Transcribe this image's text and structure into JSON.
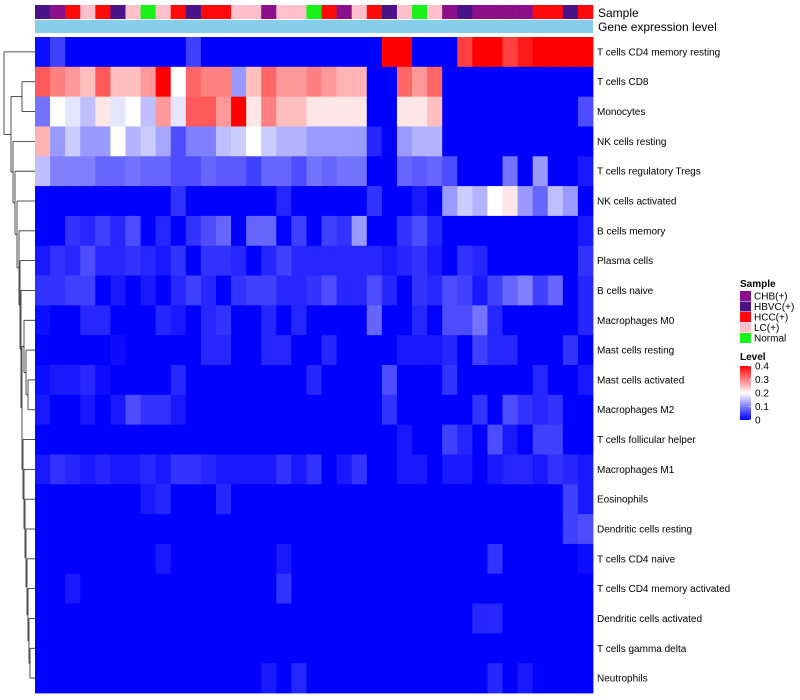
{
  "chart_data": {
    "type": "heatmap",
    "title": "",
    "annotation_rows": [
      "Sample",
      "Gene expression level"
    ],
    "sample_groups": [
      "HBVC(+)",
      "CHB(+)",
      "HCC(+)",
      "LC(+)",
      "HCC(+)",
      "HBVC(+)",
      "LC(+)",
      "Normal",
      "LC(+)",
      "HCC(+)",
      "HBVC(+)",
      "HCC(+)",
      "HCC(+)",
      "LC(+)",
      "LC(+)",
      "CHB(+)",
      "LC(+)",
      "LC(+)",
      "Normal",
      "HCC(+)",
      "CHB(+)",
      "LC(+)",
      "HCC(+)",
      "HBVC(+)",
      "LC(+)",
      "Normal",
      "LC(+)",
      "CHB(+)",
      "HBVC(+)",
      "CHB(+)",
      "CHB(+)",
      "CHB(+)",
      "CHB(+)",
      "HCC(+)",
      "HCC(+)",
      "HBVC(+)",
      "HCC(+)"
    ],
    "rows": [
      "T cells CD4 memory resting",
      "T cells CD8",
      "Monocytes",
      "NK cells resting",
      "T cells regulatory  Tregs",
      "NK cells activated",
      "B cells memory",
      "Plasma cells",
      "B cells naive",
      "Macrophages M0",
      "Mast cells resting",
      "Mast cells activated",
      "Macrophages M2",
      "T cells follicular helper",
      "Macrophages M1",
      "Eosinophils",
      "Dendritic cells resting",
      "T cells CD4 naive",
      "T cells CD4 memory activated",
      "Dendritic cells activated",
      "T cells gamma delta",
      "Neutrophils"
    ],
    "values": [
      [
        0.01,
        0.05,
        0,
        0,
        0,
        0,
        0,
        0,
        0,
        0,
        0.05,
        0,
        0,
        0,
        0,
        0,
        0,
        0,
        0,
        0,
        0,
        0,
        0,
        0.4,
        0.4,
        0,
        0,
        0,
        0.35,
        0.4,
        0.4,
        0.35,
        0.38,
        0.4,
        0.4,
        0.4,
        0.4
      ],
      [
        0.33,
        0.3,
        0.28,
        0.25,
        0.33,
        0.25,
        0.25,
        0.28,
        0.4,
        0.2,
        0.32,
        0.3,
        0.3,
        0.12,
        0.25,
        0.32,
        0.28,
        0.28,
        0.3,
        0.28,
        0.26,
        0.26,
        0,
        0,
        0.32,
        0.28,
        0.32,
        0,
        0,
        0,
        0,
        0,
        0,
        0,
        0,
        0,
        0
      ],
      [
        0.09,
        0.2,
        0.18,
        0.15,
        0.22,
        0.18,
        0.2,
        0.15,
        0.28,
        0.18,
        0.33,
        0.33,
        0.28,
        0.42,
        0.22,
        0.3,
        0.25,
        0.25,
        0.22,
        0.22,
        0.22,
        0.22,
        0,
        0,
        0.22,
        0.22,
        0.25,
        0,
        0,
        0,
        0,
        0,
        0,
        0,
        0,
        0,
        0.06
      ],
      [
        0.26,
        0.12,
        0.16,
        0.12,
        0.12,
        0.2,
        0.14,
        0.16,
        0.13,
        0.06,
        0.1,
        0.1,
        0.15,
        0.16,
        0.2,
        0.16,
        0.14,
        0.14,
        0.12,
        0.12,
        0.12,
        0.12,
        0.03,
        0,
        0.12,
        0.14,
        0.14,
        0,
        0,
        0,
        0,
        0,
        0,
        0,
        0,
        0,
        0
      ],
      [
        0.15,
        0.1,
        0.1,
        0.1,
        0.08,
        0.08,
        0.09,
        0.08,
        0.08,
        0.06,
        0.06,
        0.08,
        0.07,
        0.07,
        0.05,
        0.08,
        0.08,
        0.06,
        0.09,
        0.08,
        0.09,
        0.09,
        0,
        0,
        0.08,
        0.07,
        0.08,
        0.06,
        0,
        0,
        0,
        0.09,
        0,
        0.12,
        0,
        0,
        0.02
      ],
      [
        0,
        0,
        0,
        0,
        0,
        0,
        0,
        0,
        0,
        0.04,
        0,
        0,
        0,
        0,
        0,
        0,
        0.03,
        0,
        0,
        0,
        0,
        0,
        0.04,
        0,
        0,
        0.02,
        0,
        0.12,
        0.16,
        0.14,
        0.2,
        0.22,
        0.12,
        0.08,
        0.15,
        0.12,
        0
      ],
      [
        0,
        0,
        0.04,
        0.03,
        0.05,
        0.03,
        0.06,
        0,
        0.03,
        0,
        0.04,
        0.06,
        0.08,
        0,
        0.08,
        0.08,
        0,
        0.05,
        0,
        0.05,
        0.04,
        0.12,
        0,
        0,
        0.04,
        0.06,
        0.03,
        0,
        0,
        0,
        0,
        0,
        0,
        0,
        0,
        0,
        0.02
      ],
      [
        0.02,
        0.04,
        0.03,
        0.06,
        0.03,
        0.03,
        0.04,
        0.03,
        0.02,
        0.04,
        0,
        0.04,
        0.04,
        0.03,
        0,
        0.03,
        0.05,
        0.03,
        0.03,
        0.03,
        0.03,
        0.03,
        0.03,
        0.02,
        0.03,
        0.04,
        0.02,
        0,
        0.04,
        0.03,
        0,
        0,
        0,
        0,
        0,
        0,
        0.04
      ],
      [
        0.04,
        0.04,
        0.05,
        0.05,
        0,
        0.02,
        0,
        0.02,
        0,
        0.03,
        0.05,
        0.03,
        0,
        0.04,
        0.05,
        0.05,
        0.03,
        0.03,
        0.04,
        0.06,
        0.03,
        0.03,
        0.06,
        0.03,
        0,
        0.04,
        0.03,
        0.06,
        0.05,
        0.02,
        0.05,
        0.08,
        0.1,
        0.05,
        0.08,
        0,
        0.03
      ],
      [
        0.01,
        0,
        0,
        0.03,
        0.03,
        0,
        0,
        0,
        0.03,
        0.02,
        0,
        0.03,
        0.04,
        0,
        0,
        0.03,
        0,
        0.03,
        0,
        0,
        0,
        0,
        0.08,
        0,
        0,
        0.03,
        0,
        0.06,
        0.06,
        0.09,
        0.03,
        0,
        0,
        0,
        0,
        0,
        0.03
      ],
      [
        0,
        0,
        0,
        0,
        0,
        0.01,
        0,
        0,
        0,
        0,
        0,
        0.03,
        0.03,
        0,
        0,
        0.03,
        0.03,
        0,
        0,
        0.03,
        0,
        0,
        0,
        0,
        0.02,
        0.02,
        0.02,
        0.03,
        0,
        0.05,
        0.03,
        0.03,
        0,
        0,
        0,
        0.04,
        0
      ],
      [
        0.01,
        0.02,
        0.02,
        0.03,
        0.01,
        0,
        0,
        0,
        0,
        0.03,
        0,
        0,
        0,
        0,
        0,
        0,
        0,
        0,
        0.03,
        0,
        0,
        0,
        0,
        0.06,
        0,
        0,
        0,
        0.04,
        0,
        0,
        0,
        0,
        0,
        0.03,
        0,
        0,
        0.02
      ],
      [
        0.02,
        0,
        0,
        0.02,
        0,
        0.02,
        0.06,
        0.04,
        0.04,
        0.02,
        0,
        0,
        0,
        0,
        0,
        0,
        0,
        0,
        0,
        0,
        0,
        0,
        0,
        0.04,
        0,
        0,
        0,
        0,
        0,
        0.04,
        0,
        0.06,
        0.04,
        0.03,
        0.04,
        0,
        0
      ],
      [
        0,
        0,
        0,
        0,
        0,
        0,
        0,
        0,
        0,
        0,
        0,
        0,
        0,
        0,
        0,
        0,
        0,
        0,
        0,
        0,
        0,
        0,
        0,
        0,
        0.02,
        0,
        0,
        0.05,
        0.03,
        0,
        0.06,
        0.02,
        0,
        0.05,
        0.05,
        0,
        0
      ],
      [
        0.02,
        0.04,
        0.03,
        0.02,
        0.03,
        0.02,
        0.02,
        0.03,
        0.02,
        0.04,
        0.04,
        0.03,
        0.02,
        0.02,
        0.02,
        0.02,
        0.04,
        0.02,
        0.04,
        0,
        0.02,
        0.04,
        0,
        0,
        0.02,
        0.02,
        0,
        0.02,
        0.02,
        0,
        0.02,
        0.03,
        0.03,
        0.02,
        0.04,
        0.03,
        0.02
      ],
      [
        0,
        0,
        0,
        0,
        0,
        0,
        0,
        0.02,
        0.03,
        0,
        0,
        0,
        0.03,
        0,
        0,
        0,
        0,
        0,
        0,
        0,
        0,
        0,
        0,
        0,
        0,
        0,
        0,
        0,
        0,
        0,
        0,
        0,
        0,
        0,
        0,
        0.05,
        0.02
      ],
      [
        0,
        0,
        0,
        0,
        0,
        0,
        0,
        0,
        0,
        0,
        0,
        0,
        0,
        0,
        0,
        0,
        0,
        0,
        0,
        0,
        0,
        0,
        0,
        0,
        0,
        0,
        0,
        0,
        0,
        0,
        0,
        0,
        0,
        0,
        0,
        0.05,
        0.06
      ],
      [
        0,
        0,
        0,
        0,
        0,
        0,
        0,
        0,
        0.02,
        0,
        0,
        0,
        0,
        0,
        0,
        0,
        0.02,
        0,
        0,
        0,
        0,
        0,
        0,
        0,
        0,
        0,
        0,
        0,
        0,
        0,
        0.04,
        0,
        0,
        0,
        0,
        0,
        0.01
      ],
      [
        0,
        0,
        0.02,
        0,
        0,
        0,
        0,
        0,
        0,
        0,
        0,
        0,
        0,
        0,
        0,
        0,
        0.04,
        0,
        0,
        0,
        0,
        0,
        0,
        0,
        0,
        0,
        0,
        0,
        0,
        0,
        0,
        0,
        0,
        0,
        0,
        0,
        0
      ],
      [
        0,
        0,
        0,
        0,
        0,
        0,
        0,
        0,
        0,
        0,
        0,
        0,
        0,
        0,
        0,
        0,
        0,
        0,
        0,
        0,
        0,
        0,
        0,
        0,
        0,
        0,
        0,
        0,
        0,
        0.03,
        0.03,
        0,
        0,
        0,
        0,
        0,
        0
      ],
      [
        0,
        0,
        0,
        0,
        0,
        0,
        0,
        0,
        0,
        0,
        0,
        0,
        0,
        0,
        0,
        0,
        0,
        0,
        0,
        0,
        0,
        0,
        0,
        0,
        0,
        0,
        0,
        0,
        0,
        0,
        0,
        0,
        0,
        0,
        0,
        0,
        0
      ],
      [
        0,
        0,
        0,
        0,
        0,
        0,
        0,
        0,
        0,
        0,
        0,
        0,
        0,
        0,
        0,
        0.02,
        0,
        0.03,
        0,
        0,
        0,
        0,
        0,
        0,
        0,
        0,
        0,
        0,
        0,
        0,
        0.03,
        0,
        0.02,
        0,
        0,
        0,
        0
      ]
    ],
    "legend_sample": {
      "title": "Sample",
      "entries": [
        {
          "label": "CHB(+)",
          "color": "#8B0F8B"
        },
        {
          "label": "HBVC(+)",
          "color": "#4B1388"
        },
        {
          "label": "HCC(+)",
          "color": "#FF0A0A"
        },
        {
          "label": "LC(+)",
          "color": "#FFC0CB"
        },
        {
          "label": "Normal",
          "color": "#1AF01A"
        }
      ]
    },
    "legend_level": {
      "title": "Level",
      "ticks": [
        "0.4",
        "0.3",
        "0.2",
        "0.1",
        "0"
      ],
      "range": [
        0,
        0.4
      ]
    },
    "colors": {
      "low": "#0000FF",
      "mid": "#FFFFFF",
      "high": "#FF0000",
      "expression_bar": "#87CEEB"
    }
  }
}
